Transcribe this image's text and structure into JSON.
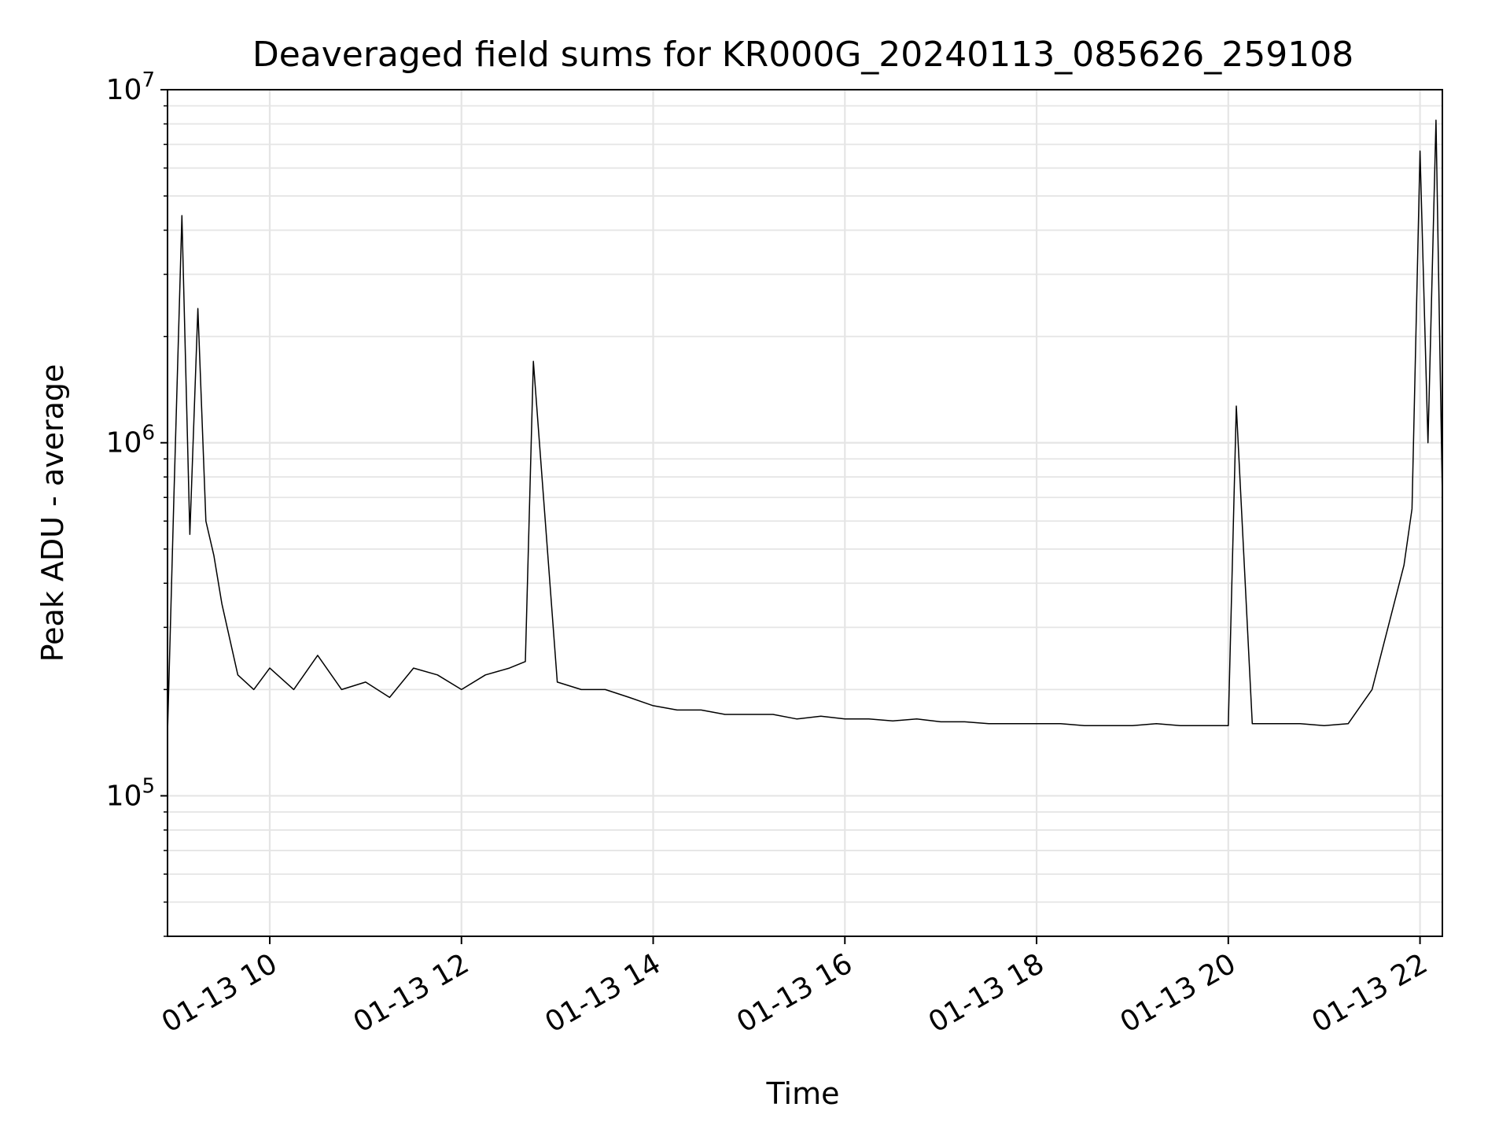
{
  "chart_data": {
    "type": "line",
    "title": "Deaveraged field sums for KR000G_20240113_085626_259108",
    "xlabel": "Time",
    "ylabel": "Peak ADU - average",
    "yscale": "log",
    "ylim": [
      40000,
      10000000
    ],
    "xlim": [
      "2024-01-13 08:56",
      "2024-01-13 22:14"
    ],
    "xticks": [
      {
        "value": "2024-01-13 10:00",
        "label": "01-13 10"
      },
      {
        "value": "2024-01-13 12:00",
        "label": "01-13 12"
      },
      {
        "value": "2024-01-13 14:00",
        "label": "01-13 14"
      },
      {
        "value": "2024-01-13 16:00",
        "label": "01-13 16"
      },
      {
        "value": "2024-01-13 18:00",
        "label": "01-13 18"
      },
      {
        "value": "2024-01-13 20:00",
        "label": "01-13 20"
      },
      {
        "value": "2024-01-13 22:00",
        "label": "01-13 22"
      }
    ],
    "yticks": [
      {
        "value": 100000,
        "base": "10",
        "exp": "5"
      },
      {
        "value": 1000000,
        "base": "10",
        "exp": "6"
      },
      {
        "value": 10000000,
        "base": "10",
        "exp": "7"
      }
    ],
    "grid": true,
    "line_color": "#000000",
    "series": [
      {
        "x": [
          "2024-01-13 08:56",
          "2024-01-13 09:00",
          "2024-01-13 09:05",
          "2024-01-13 09:10",
          "2024-01-13 09:15",
          "2024-01-13 09:20",
          "2024-01-13 09:25",
          "2024-01-13 09:30",
          "2024-01-13 09:40",
          "2024-01-13 09:50",
          "2024-01-13 10:00",
          "2024-01-13 10:15",
          "2024-01-13 10:30",
          "2024-01-13 10:45",
          "2024-01-13 11:00",
          "2024-01-13 11:15",
          "2024-01-13 11:30",
          "2024-01-13 11:45",
          "2024-01-13 12:00",
          "2024-01-13 12:15",
          "2024-01-13 12:30",
          "2024-01-13 12:40",
          "2024-01-13 12:45",
          "2024-01-13 13:00",
          "2024-01-13 13:15",
          "2024-01-13 13:30",
          "2024-01-13 13:45",
          "2024-01-13 14:00",
          "2024-01-13 14:15",
          "2024-01-13 14:30",
          "2024-01-13 14:45",
          "2024-01-13 15:00",
          "2024-01-13 15:15",
          "2024-01-13 15:30",
          "2024-01-13 15:45",
          "2024-01-13 16:00",
          "2024-01-13 16:15",
          "2024-01-13 16:30",
          "2024-01-13 16:45",
          "2024-01-13 17:00",
          "2024-01-13 17:15",
          "2024-01-13 17:30",
          "2024-01-13 17:45",
          "2024-01-13 18:00",
          "2024-01-13 18:15",
          "2024-01-13 18:30",
          "2024-01-13 18:45",
          "2024-01-13 19:00",
          "2024-01-13 19:15",
          "2024-01-13 19:30",
          "2024-01-13 19:45",
          "2024-01-13 20:00",
          "2024-01-13 20:05",
          "2024-01-13 20:15",
          "2024-01-13 20:30",
          "2024-01-13 20:45",
          "2024-01-13 21:00",
          "2024-01-13 21:15",
          "2024-01-13 21:30",
          "2024-01-13 21:40",
          "2024-01-13 21:50",
          "2024-01-13 21:55",
          "2024-01-13 22:00",
          "2024-01-13 22:05",
          "2024-01-13 22:10",
          "2024-01-13 22:14"
        ],
        "y": [
          150000,
          700000,
          4400000,
          550000,
          2400000,
          600000,
          480000,
          350000,
          220000,
          200000,
          230000,
          200000,
          250000,
          200000,
          210000,
          190000,
          230000,
          220000,
          200000,
          220000,
          230000,
          240000,
          1700000,
          210000,
          200000,
          200000,
          190000,
          180000,
          175000,
          175000,
          170000,
          170000,
          170000,
          165000,
          168000,
          165000,
          165000,
          163000,
          165000,
          162000,
          162000,
          160000,
          160000,
          160000,
          160000,
          158000,
          158000,
          158000,
          160000,
          158000,
          158000,
          158000,
          1270000,
          160000,
          160000,
          160000,
          158000,
          160000,
          200000,
          300000,
          450000,
          650000,
          6700000,
          1000000,
          8200000,
          700000
        ]
      }
    ]
  }
}
